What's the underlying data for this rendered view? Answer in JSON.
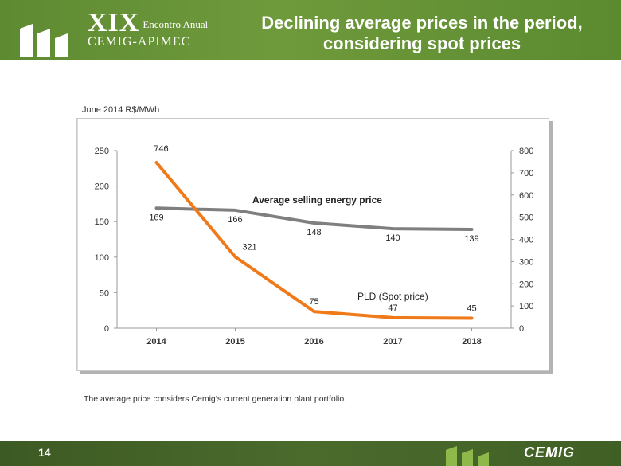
{
  "header": {
    "event_roman": "XIX",
    "event_sub": "Encontro Anual",
    "event_org": "CEMIG-APIMEC",
    "title_line1": "Declining average prices in the period,",
    "title_line2": "considering spot prices"
  },
  "unit_label": "June 2014 R$/MWh",
  "chart_data": {
    "type": "line",
    "categories": [
      "2014",
      "2015",
      "2016",
      "2017",
      "2018"
    ],
    "y_left": {
      "min": 0,
      "max": 250,
      "ticks": [
        0,
        50,
        100,
        150,
        200,
        250
      ]
    },
    "y_right": {
      "min": 0,
      "max": 800,
      "ticks": [
        0,
        100,
        200,
        300,
        400,
        500,
        600,
        700,
        800
      ]
    },
    "series": [
      {
        "name": "Average selling energy price",
        "axis": "left",
        "color": "#7f7f7f",
        "values": [
          169,
          166,
          148,
          140,
          139
        ]
      },
      {
        "name": "PLD  (Spot price)",
        "axis": "right",
        "color": "#f07a1a",
        "values": [
          746,
          321,
          75,
          47,
          45
        ]
      }
    ]
  },
  "footnote": "The average price considers Cemig’s current generation plant portfolio.",
  "footer": {
    "page_number": "14",
    "logo_text": "CEMIG"
  }
}
